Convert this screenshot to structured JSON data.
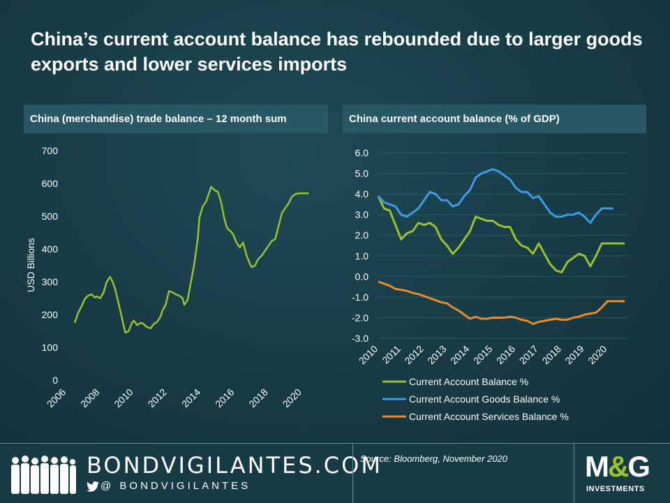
{
  "headline": "China’s current account balance has rebounded due to larger goods exports and lower services imports",
  "left_panel": {
    "title": "China (merchandise) trade balance – 12 month sum"
  },
  "right_panel": {
    "title": "China current account balance (% of GDP)"
  },
  "colors": {
    "green": "#9bc130",
    "blue": "#3f9ae8",
    "orange": "#ec8a2a",
    "background": "#173b45",
    "panel": "#285863"
  },
  "chart_data": [
    {
      "type": "line",
      "title": "China (merchandise) trade balance – 12 month sum",
      "ylabel": "USD Billions",
      "xlabel": "",
      "ylim": [
        0,
        700
      ],
      "yticks": [
        "0",
        "100",
        "200",
        "300",
        "400",
        "500",
        "600",
        "700"
      ],
      "xlim": [
        2006,
        2020.5
      ],
      "xticks": [
        "2006",
        "2008",
        "2010",
        "2012",
        "2014",
        "2016",
        "2018",
        "2020"
      ],
      "grid": false,
      "legend": "none",
      "series": [
        {
          "color": "#9bc130",
          "x": [
            2006.5,
            2006.7,
            2006.9,
            2007.1,
            2007.3,
            2007.5,
            2007.7,
            2007.8,
            2008.0,
            2008.2,
            2008.4,
            2008.6,
            2008.75,
            2008.9,
            2009.1,
            2009.3,
            2009.5,
            2009.7,
            2009.9,
            2010.0,
            2010.2,
            2010.4,
            2010.6,
            2010.7,
            2010.9,
            2011.0,
            2011.2,
            2011.4,
            2011.6,
            2011.7,
            2011.9,
            2012.1,
            2012.3,
            2012.5,
            2012.7,
            2012.9,
            2013.0,
            2013.2,
            2013.4,
            2013.6,
            2013.8,
            2013.9,
            2014.1,
            2014.3,
            2014.5,
            2014.6,
            2014.7,
            2014.85,
            2015.0,
            2015.2,
            2015.35,
            2015.5,
            2015.6,
            2015.75,
            2015.9,
            2016.1,
            2016.3,
            2016.5,
            2016.7,
            2016.9,
            2017.0,
            2017.2,
            2017.3,
            2017.4,
            2017.6,
            2017.8,
            2018.0,
            2018.2,
            2018.4,
            2018.6,
            2018.8,
            2019.0,
            2019.2,
            2019.4,
            2019.6,
            2019.8,
            2020.0,
            2020.2,
            2020.4
          ],
          "values": [
            175,
            205,
            225,
            248,
            258,
            262,
            252,
            256,
            250,
            265,
            300,
            315,
            300,
            278,
            235,
            190,
            145,
            150,
            175,
            182,
            168,
            175,
            172,
            165,
            160,
            158,
            172,
            178,
            195,
            212,
            230,
            272,
            268,
            262,
            258,
            250,
            230,
            245,
            300,
            355,
            430,
            495,
            530,
            545,
            575,
            590,
            585,
            578,
            575,
            540,
            500,
            470,
            460,
            455,
            445,
            420,
            405,
            420,
            380,
            355,
            345,
            350,
            360,
            370,
            380,
            395,
            410,
            425,
            430,
            470,
            510,
            525,
            540,
            560,
            568,
            570,
            570,
            570,
            570
          ]
        }
      ]
    },
    {
      "type": "line",
      "title": "China current account balance (% of GDP)",
      "xlabel": "",
      "ylabel": "",
      "ylim": [
        -3.0,
        6.0
      ],
      "yticks": [
        "6.0",
        "5.0",
        "4.0",
        "3.0",
        "2.0",
        "1.0",
        "0.0",
        "-1.0",
        "-2.0",
        "-3.0"
      ],
      "xlim": [
        2010,
        2020.9
      ],
      "xticks": [
        "2010",
        "2011",
        "2012",
        "2013",
        "2014",
        "2015",
        "2016",
        "2017",
        "2018",
        "2019",
        "2020"
      ],
      "grid": true,
      "legend": "bottom",
      "series": [
        {
          "name": "Current Account Balance %",
          "color": "#9bc130",
          "x": [
            2010.0,
            2010.25,
            2010.5,
            2010.75,
            2011.0,
            2011.25,
            2011.5,
            2011.75,
            2012.0,
            2012.25,
            2012.5,
            2012.75,
            2013.0,
            2013.25,
            2013.5,
            2013.75,
            2014.0,
            2014.25,
            2014.5,
            2014.75,
            2015.0,
            2015.25,
            2015.5,
            2015.75,
            2016.0,
            2016.25,
            2016.5,
            2016.75,
            2017.0,
            2017.25,
            2017.5,
            2017.75,
            2018.0,
            2018.25,
            2018.5,
            2018.75,
            2019.0,
            2019.25,
            2019.5,
            2019.75,
            2020.0,
            2020.25,
            2020.5,
            2020.75
          ],
          "values": [
            3.9,
            3.3,
            3.2,
            2.5,
            1.8,
            2.1,
            2.2,
            2.6,
            2.5,
            2.6,
            2.4,
            1.8,
            1.5,
            1.1,
            1.4,
            1.8,
            2.2,
            2.9,
            2.8,
            2.7,
            2.7,
            2.5,
            2.4,
            2.4,
            1.8,
            1.5,
            1.4,
            1.1,
            1.6,
            1.1,
            0.6,
            0.3,
            0.2,
            0.7,
            0.9,
            1.1,
            1.0,
            0.5,
            1.0,
            1.6,
            1.6,
            1.6,
            1.6,
            1.6
          ]
        },
        {
          "name": "Current Account Goods Balance %",
          "color": "#3f9ae8",
          "x": [
            2010.0,
            2010.25,
            2010.5,
            2010.75,
            2011.0,
            2011.25,
            2011.5,
            2011.75,
            2012.0,
            2012.25,
            2012.5,
            2012.75,
            2013.0,
            2013.25,
            2013.5,
            2013.75,
            2014.0,
            2014.25,
            2014.5,
            2014.75,
            2015.0,
            2015.25,
            2015.5,
            2015.75,
            2016.0,
            2016.25,
            2016.5,
            2016.75,
            2017.0,
            2017.25,
            2017.5,
            2017.75,
            2018.0,
            2018.25,
            2018.5,
            2018.75,
            2019.0,
            2019.25,
            2019.5,
            2019.75,
            2020.0,
            2020.25
          ],
          "values": [
            3.9,
            3.6,
            3.5,
            3.4,
            3.0,
            2.9,
            3.1,
            3.3,
            3.7,
            4.1,
            4.0,
            3.7,
            3.7,
            3.4,
            3.5,
            3.9,
            4.2,
            4.8,
            5.0,
            5.1,
            5.2,
            5.1,
            4.9,
            4.7,
            4.3,
            4.1,
            4.1,
            3.8,
            3.9,
            3.5,
            3.1,
            2.9,
            2.9,
            3.0,
            3.0,
            3.1,
            2.9,
            2.6,
            3.0,
            3.3,
            3.3,
            3.3
          ]
        },
        {
          "name": "Current Account Services Balance %",
          "color": "#ec8a2a",
          "x": [
            2010.0,
            2010.25,
            2010.5,
            2010.75,
            2011.0,
            2011.25,
            2011.5,
            2011.75,
            2012.0,
            2012.25,
            2012.5,
            2012.75,
            2013.0,
            2013.25,
            2013.5,
            2013.75,
            2014.0,
            2014.25,
            2014.5,
            2014.75,
            2015.0,
            2015.25,
            2015.5,
            2015.75,
            2016.0,
            2016.25,
            2016.5,
            2016.75,
            2017.0,
            2017.25,
            2017.5,
            2017.75,
            2018.0,
            2018.25,
            2018.5,
            2018.75,
            2019.0,
            2019.25,
            2019.5,
            2019.75,
            2020.0,
            2020.25,
            2020.5,
            2020.75
          ],
          "values": [
            -0.25,
            -0.35,
            -0.45,
            -0.6,
            -0.65,
            -0.7,
            -0.8,
            -0.85,
            -0.95,
            -1.05,
            -1.15,
            -1.25,
            -1.3,
            -1.5,
            -1.65,
            -1.85,
            -2.05,
            -1.95,
            -2.05,
            -2.05,
            -2.0,
            -2.0,
            -2.0,
            -1.95,
            -2.0,
            -2.1,
            -2.15,
            -2.3,
            -2.2,
            -2.15,
            -2.1,
            -2.05,
            -2.1,
            -2.1,
            -2.0,
            -1.95,
            -1.85,
            -1.8,
            -1.75,
            -1.5,
            -1.2,
            -1.2,
            -1.2,
            -1.2
          ]
        }
      ]
    }
  ],
  "footer": {
    "site": "BONDVIGILANTES.COM",
    "handle": "@ BONDVIGILANTES",
    "twitter_icon": "twitter-bird-icon",
    "source": "Source: Bloomberg, November 2020",
    "logo": {
      "brand_left": "M",
      "brand_amp": "&",
      "brand_right": "G",
      "sub": "INVESTMENTS"
    }
  }
}
